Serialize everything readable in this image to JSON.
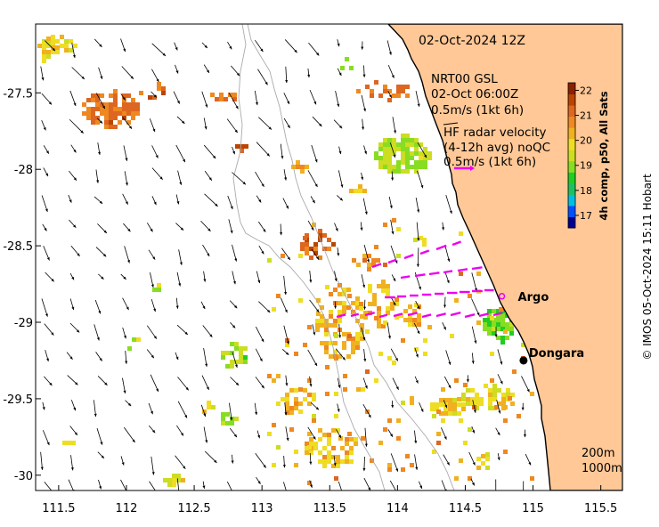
{
  "map": {
    "date_title": "02-Oct-2024 12Z",
    "lon_ticks": [
      "111.5",
      "112",
      "112.5",
      "113",
      "113.5",
      "114",
      "114.5",
      "115",
      "115.5"
    ],
    "lat_ticks": [
      "-27.5",
      "-28",
      "-28.5",
      "-29",
      "-29.5",
      "-30"
    ],
    "lon_tick_values": [
      111.5,
      112,
      112.5,
      113,
      113.5,
      114,
      114.5,
      115,
      115.5
    ],
    "lat_tick_values": [
      -27.5,
      -28,
      -28.5,
      -29,
      -29.5,
      -30
    ],
    "lon_range": [
      111.33,
      115.66
    ],
    "lat_range": [
      -30.1,
      -27.05
    ],
    "legend": {
      "model_title": "NRT00 GSL",
      "model_time": "02-Oct 06:00Z",
      "model_scale": "0.5m/s (1kt 6h)",
      "radar_title": "HF radar velocity",
      "radar_subtitle": "(4-12h avg) noQC",
      "radar_scale": "0.5m/s (1kt 6h)",
      "radar_color": "#ee00ee"
    },
    "places": [
      {
        "name": "Argo",
        "lon": 114.77,
        "lat": -28.83,
        "marker": "open-circle",
        "color": "#ee00ee"
      },
      {
        "name": "Dongara",
        "lon": 114.93,
        "lat": -29.25,
        "marker": "filled-dot",
        "color": "#000000"
      }
    ],
    "isobaths": [
      "200m",
      "1000m"
    ],
    "credit": "© IMOS 05-Oct-2024 15:11 Hobart",
    "colorbar": {
      "label": "4h comp, p50, All Sats",
      "ticks": [
        "22",
        "21",
        "20",
        "19",
        "18",
        "17"
      ],
      "tick_values": [
        22,
        21,
        20,
        19,
        18,
        17
      ],
      "range": [
        16.5,
        22.3
      ],
      "colors": [
        "#00008f",
        "#0050ff",
        "#00bfe0",
        "#20c060",
        "#22cc22",
        "#88dd22",
        "#ccdd22",
        "#eedd22",
        "#f0b020",
        "#ee8820",
        "#dd6620",
        "#bb4400",
        "#8a2000"
      ]
    },
    "land_color": "#ffc896",
    "coast_color": "#000000"
  }
}
